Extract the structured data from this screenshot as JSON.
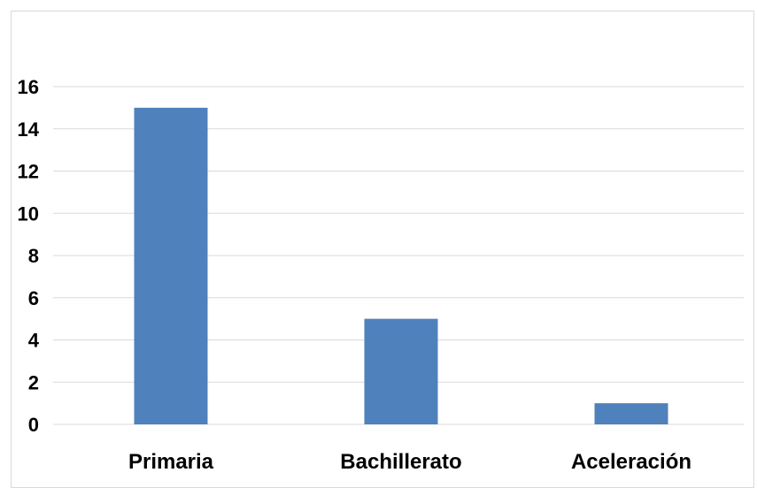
{
  "chart_data": {
    "type": "bar",
    "categories": [
      "Primaria",
      "Bachillerato",
      "Aceleración"
    ],
    "values": [
      15,
      5,
      1
    ],
    "ylim": [
      0,
      16
    ],
    "y_ticks": [
      0,
      2,
      4,
      6,
      8,
      10,
      12,
      14,
      16
    ],
    "grid": true,
    "legend": "none",
    "bar_color": "#4f81bd",
    "grid_color": "#d9d9d9"
  }
}
